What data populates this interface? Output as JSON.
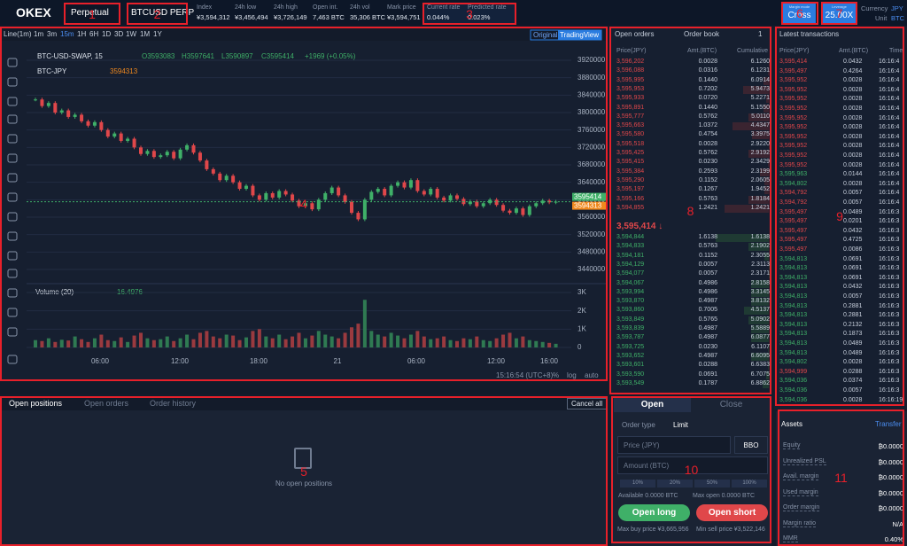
{
  "header": {
    "logo": "OKEX",
    "contract_type": "Perpetual",
    "contract": "BTCUSD PERP",
    "stats": [
      {
        "label": "Index",
        "value": "¥3,594,312"
      },
      {
        "label": "24h low",
        "value": "¥3,456,494"
      },
      {
        "label": "24h high",
        "value": "¥3,726,149"
      },
      {
        "label": "Open int.",
        "value": "7,463 BTC"
      },
      {
        "label": "24h vol",
        "value": "35,306 BTC"
      },
      {
        "label": "Mark price",
        "value": "¥3,594,751"
      }
    ],
    "current_rate": {
      "label": "Current rate",
      "value": "0.044%"
    },
    "predicted_rate": {
      "label": "Predicted rate",
      "value": "0.023%"
    },
    "margin_mode": {
      "label": "Margin mode",
      "value": "Cross"
    },
    "leverage": {
      "label": "Leverage",
      "value": "25.00X"
    },
    "currency": {
      "label": "Currency",
      "value": "JPY"
    },
    "unit": {
      "label": "Unit",
      "value": "BTC"
    }
  },
  "chart": {
    "intervals": [
      "Line(1m)",
      "1m",
      "3m",
      "15m",
      "1H",
      "6H",
      "1D",
      "3D",
      "1W",
      "1M",
      "1Y"
    ],
    "views": [
      "Original",
      "TradingView"
    ],
    "symbol": "BTC-USD-SWAP, 15",
    "ohlc": [
      "O3593083",
      "H3597641",
      "L3590897",
      "C3595414"
    ],
    "change": "+1969 (+0.05%)",
    "compare": "BTC-JPY",
    "compare_value": "3594313",
    "last_price_tag": "3595414",
    "compare_tag": "3594313",
    "x_labels": [
      "06:00",
      "12:00",
      "18:00",
      "21",
      "06:00",
      "12:00",
      "16:00"
    ],
    "footer": [
      "15:16:54 (UTC+8)",
      "%",
      "log",
      "auto"
    ],
    "volume": {
      "title": "Volume (20)",
      "last": "16.4976",
      "ylim": [
        0,
        3000
      ],
      "yticks": [
        0,
        {
          "value": 1000,
          "label": "1K"
        },
        {
          "value": 2000,
          "label": "2K"
        },
        {
          "value": 3000,
          "label": "3K"
        }
      ],
      "values": [
        400,
        350,
        500,
        300,
        420,
        380,
        600,
        450,
        300,
        500,
        700,
        400,
        350,
        550,
        300,
        650,
        800,
        500,
        400,
        450,
        600,
        350,
        500,
        700,
        450,
        800,
        900,
        600,
        500,
        700,
        650,
        400,
        550,
        900,
        1000,
        600,
        500,
        700,
        450,
        600,
        800,
        500,
        650,
        900,
        700,
        600,
        500,
        800,
        1100,
        1300,
        2600,
        900,
        700,
        600,
        800,
        650,
        500,
        700,
        900,
        600,
        450,
        500,
        600,
        400,
        350,
        500,
        450,
        600,
        400,
        350,
        500,
        700,
        800,
        500,
        600,
        400,
        350,
        300,
        250,
        200
      ]
    }
  },
  "chart_data": {
    "type": "candlestick",
    "ylim": [
      3440000,
      3920000
    ],
    "yticks": [
      3440000,
      3480000,
      3520000,
      3560000,
      3600000,
      3640000,
      3680000,
      3720000,
      3760000,
      3800000,
      3840000,
      3880000,
      3920000
    ],
    "grid": true,
    "colors": {
      "up": "#3fb068",
      "down": "#e0474a"
    },
    "values": [
      3830000,
      3815000,
      3822000,
      3800000,
      3805000,
      3790000,
      3795000,
      3780000,
      3770000,
      3778000,
      3760000,
      3745000,
      3752000,
      3735000,
      3740000,
      3720000,
      3705000,
      3712000,
      3698000,
      3702000,
      3710000,
      3695000,
      3715000,
      3725000,
      3708000,
      3690000,
      3670000,
      3660000,
      3645000,
      3655000,
      3640000,
      3625000,
      3632000,
      3610000,
      3600000,
      3615000,
      3605000,
      3620000,
      3612000,
      3598000,
      3585000,
      3592000,
      3578000,
      3600000,
      3615000,
      3628000,
      3610000,
      3595000,
      3570000,
      3555000,
      3600000,
      3618000,
      3625000,
      3610000,
      3632000,
      3640000,
      3628000,
      3645000,
      3620000,
      3612000,
      3625000,
      3605000,
      3598000,
      3610000,
      3602000,
      3590000,
      3596000,
      3585000,
      3592000,
      3600000,
      3588000,
      3575000,
      3570000,
      3580000,
      3565000,
      3585000,
      3592000,
      3598000,
      3594000,
      3595414
    ]
  },
  "order_book": {
    "tabs": [
      "Open orders",
      "Order book"
    ],
    "depth": "1",
    "columns": [
      "Price(JPY)",
      "Amt.(BTC)",
      "Cumulative"
    ],
    "asks": [
      [
        "3,596,202",
        "0.0028",
        "6.1260"
      ],
      [
        "3,596,088",
        "0.0316",
        "6.1231"
      ],
      [
        "3,595,995",
        "0.1440",
        "6.0914"
      ],
      [
        "3,595,953",
        "0.7202",
        "5.9473"
      ],
      [
        "3,595,933",
        "0.0720",
        "5.2271"
      ],
      [
        "3,595,891",
        "0.1440",
        "5.1550"
      ],
      [
        "3,595,777",
        "0.5762",
        "5.0110"
      ],
      [
        "3,595,663",
        "1.0372",
        "4.4347"
      ],
      [
        "3,595,580",
        "0.4754",
        "3.3975"
      ],
      [
        "3,595,518",
        "0.0028",
        "2.9220"
      ],
      [
        "3,595,425",
        "0.5762",
        "2.9192"
      ],
      [
        "3,595,415",
        "0.0230",
        "2.3429"
      ],
      [
        "3,595,384",
        "0.2593",
        "2.3199"
      ],
      [
        "3,595,290",
        "0.1152",
        "2.0605"
      ],
      [
        "3,595,197",
        "0.1267",
        "1.9452"
      ],
      [
        "3,595,166",
        "0.5763",
        "1.8184"
      ],
      [
        "3,594,855",
        "1.2421",
        "1.2421"
      ]
    ],
    "last_price": "3,595,414 ↓",
    "bids": [
      [
        "3,594,844",
        "1.6138",
        "1.6138"
      ],
      [
        "3,594,833",
        "0.5763",
        "2.1902"
      ],
      [
        "3,594,181",
        "0.1152",
        "2.3055"
      ],
      [
        "3,594,129",
        "0.0057",
        "2.3113"
      ],
      [
        "3,594,077",
        "0.0057",
        "2.3171"
      ],
      [
        "3,594,067",
        "0.4986",
        "2.8158"
      ],
      [
        "3,593,994",
        "0.4986",
        "3.3145"
      ],
      [
        "3,593,870",
        "0.4987",
        "3.8132"
      ],
      [
        "3,593,860",
        "0.7005",
        "4.5137"
      ],
      [
        "3,593,849",
        "0.5765",
        "5.0902"
      ],
      [
        "3,593,839",
        "0.4987",
        "5.5889"
      ],
      [
        "3,593,787",
        "0.4987",
        "6.0877"
      ],
      [
        "3,593,725",
        "0.0230",
        "6.1107"
      ],
      [
        "3,593,652",
        "0.4987",
        "6.6095"
      ],
      [
        "3,593,601",
        "0.0288",
        "6.6383"
      ],
      [
        "3,593,590",
        "0.0691",
        "6.7075"
      ],
      [
        "3,593,549",
        "0.1787",
        "6.8862"
      ]
    ]
  },
  "transactions": {
    "title": "Latest transactions",
    "columns": [
      "Price(JPY)",
      "Amt.(BTC)",
      "Time"
    ],
    "rows": [
      [
        "3,595,414",
        "0.0432",
        "16:16:4",
        "sell"
      ],
      [
        "3,595,497",
        "0.4264",
        "16:16:4",
        "sell"
      ],
      [
        "3,595,952",
        "0.0028",
        "16:16:4",
        "sell"
      ],
      [
        "3,595,952",
        "0.0028",
        "16:16:4",
        "sell"
      ],
      [
        "3,595,952",
        "0.0028",
        "16:16:4",
        "sell"
      ],
      [
        "3,595,952",
        "0.0028",
        "16:16:4",
        "sell"
      ],
      [
        "3,595,952",
        "0.0028",
        "16:16:4",
        "sell"
      ],
      [
        "3,595,952",
        "0.0028",
        "16:16:4",
        "sell"
      ],
      [
        "3,595,952",
        "0.0028",
        "16:16:4",
        "sell"
      ],
      [
        "3,595,952",
        "0.0028",
        "16:16:4",
        "sell"
      ],
      [
        "3,595,952",
        "0.0028",
        "16:16:4",
        "sell"
      ],
      [
        "3,595,952",
        "0.0028",
        "16:16:4",
        "sell"
      ],
      [
        "3,595,963",
        "0.0144",
        "16:16:4",
        "buy"
      ],
      [
        "3,594,802",
        "0.0028",
        "16:16:4",
        "buy"
      ],
      [
        "3,594,792",
        "0.0057",
        "16:16:4",
        "sell"
      ],
      [
        "3,594,792",
        "0.0057",
        "16:16:4",
        "sell"
      ],
      [
        "3,595,497",
        "0.0489",
        "16:16:3",
        "sell"
      ],
      [
        "3,595,497",
        "0.0201",
        "16:16:3",
        "sell"
      ],
      [
        "3,595,497",
        "0.0432",
        "16:16:3",
        "sell"
      ],
      [
        "3,595,497",
        "0.4725",
        "16:16:3",
        "sell"
      ],
      [
        "3,595,497",
        "0.0086",
        "16:16:3",
        "sell"
      ],
      [
        "3,594,813",
        "0.0691",
        "16:16:3",
        "buy"
      ],
      [
        "3,594,813",
        "0.0691",
        "16:16:3",
        "buy"
      ],
      [
        "3,594,813",
        "0.0691",
        "16:16:3",
        "buy"
      ],
      [
        "3,594,813",
        "0.0432",
        "16:16:3",
        "buy"
      ],
      [
        "3,594,813",
        "0.0057",
        "16:16:3",
        "buy"
      ],
      [
        "3,594,813",
        "0.2881",
        "16:16:3",
        "buy"
      ],
      [
        "3,594,813",
        "0.2881",
        "16:16:3",
        "buy"
      ],
      [
        "3,594,813",
        "0.2132",
        "16:16:3",
        "buy"
      ],
      [
        "3,594,813",
        "0.1873",
        "16:16:3",
        "buy"
      ],
      [
        "3,594,813",
        "0.0489",
        "16:16:3",
        "buy"
      ],
      [
        "3,594,813",
        "0.0489",
        "16:16:3",
        "buy"
      ],
      [
        "3,594,802",
        "0.0028",
        "16:16:3",
        "buy"
      ],
      [
        "3,594,999",
        "0.0288",
        "16:16:3",
        "sell"
      ],
      [
        "3,594,036",
        "0.0374",
        "16:16:3",
        "buy"
      ],
      [
        "3,594,036",
        "0.0057",
        "16:16:3",
        "buy"
      ],
      [
        "3,594,036",
        "0.0028",
        "16:16:19",
        "buy"
      ]
    ]
  },
  "positions": {
    "tabs": [
      "Open positions",
      "Open orders",
      "Order history"
    ],
    "cancel": "Cancel all",
    "empty": "No open positions"
  },
  "order_form": {
    "tabs": [
      "Open",
      "Close"
    ],
    "order_type_label": "Order type",
    "order_type": "Limit",
    "price_placeholder": "Price (JPY)",
    "bbo": "BBO",
    "amount_placeholder": "Amount (BTC)",
    "percents": [
      "10%",
      "20%",
      "50%",
      "100%"
    ],
    "available": "Available 0.0000 BTC",
    "max_open": "Max open 0.0000 BTC",
    "open_long": "Open long",
    "open_short": "Open short",
    "max_buy": "Max buy price ¥3,665,956",
    "min_sell": "Min sell price ¥3,522,146"
  },
  "assets": {
    "title": "Assets",
    "transfer": "Transfer",
    "rows": [
      [
        "Equity",
        "₿0.0000"
      ],
      [
        "Unrealized PSL",
        "₿0.0000"
      ],
      [
        "Avail. margin",
        "₿0.0000"
      ],
      [
        "Used margin",
        "₿0.0000"
      ],
      [
        "Order margin",
        "₿0.0000"
      ],
      [
        "Margin ratio",
        "N/A"
      ],
      [
        "MMR",
        "0.40%"
      ]
    ]
  },
  "annotations": [
    "1",
    "2",
    "3",
    "4",
    "5",
    "6",
    "7",
    "8",
    "9",
    "10",
    "11"
  ]
}
